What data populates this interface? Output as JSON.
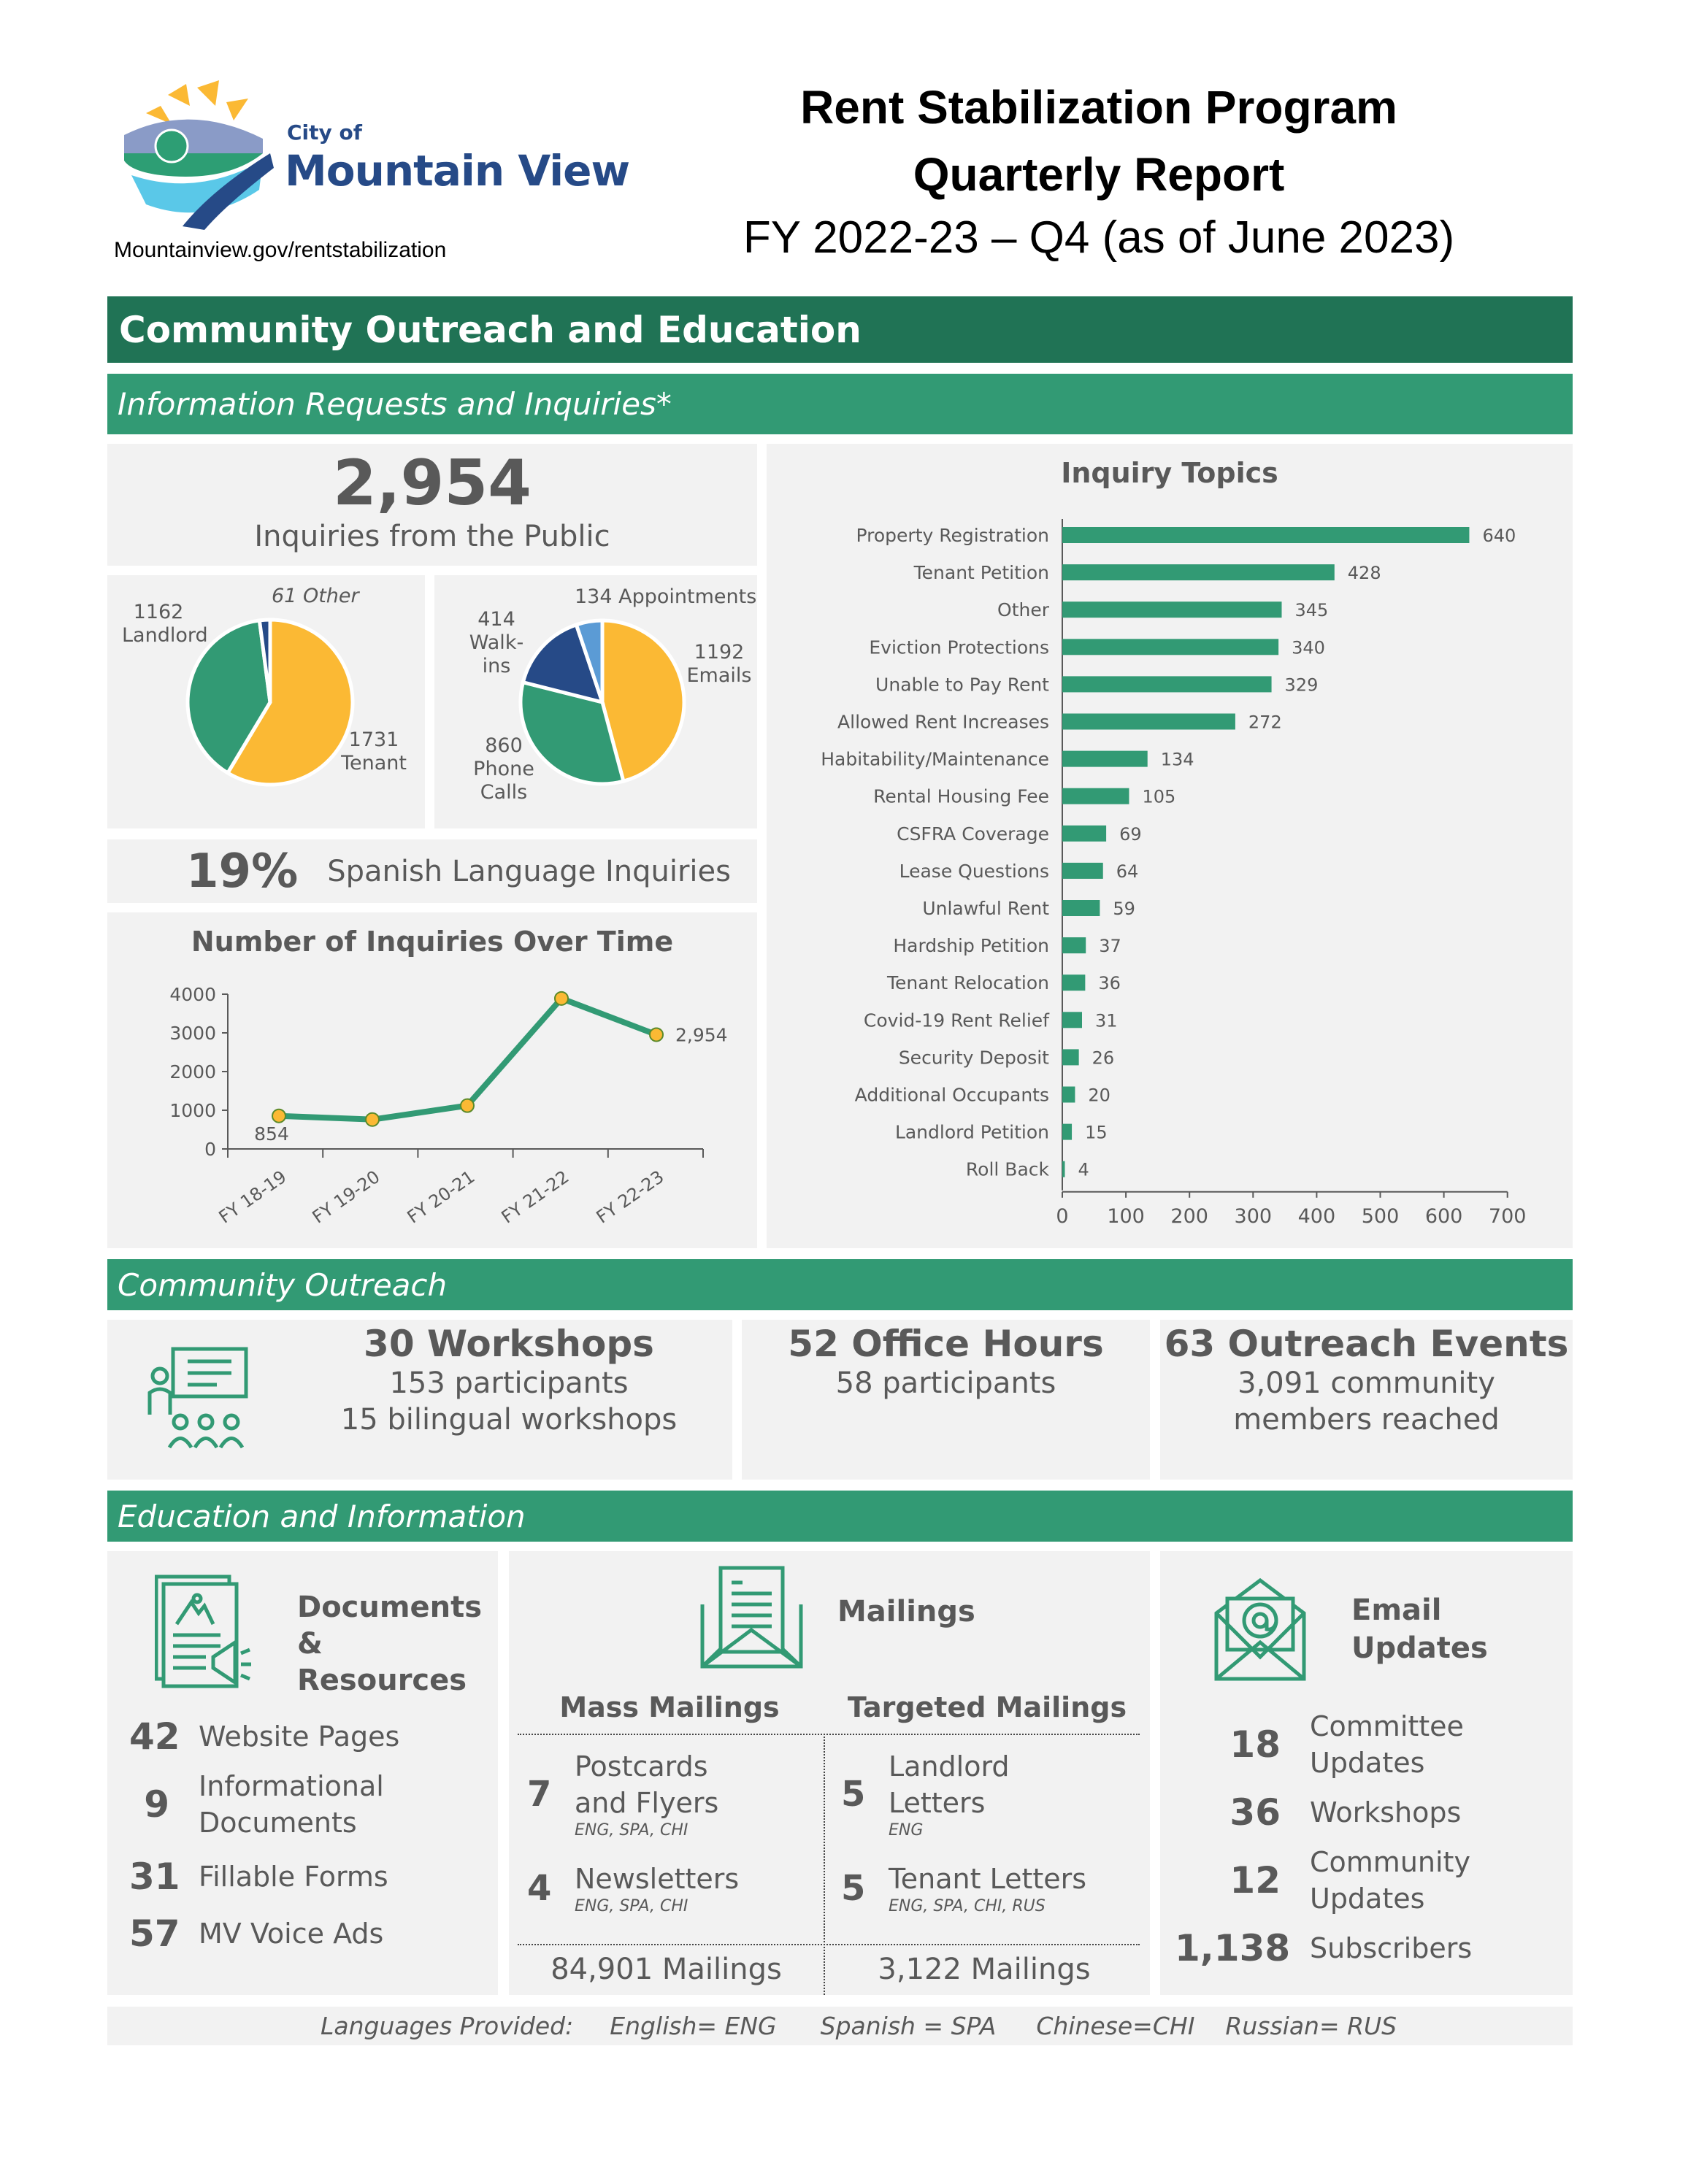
{
  "header": {
    "logo_small": "City of",
    "logo_big": "Mountain View",
    "url": "Mountainview.gov/rentstabilization",
    "title_line1": "Rent Stabilization Program",
    "title_line2": "Quarterly Report",
    "title_line3": "FY 2022-23 – Q4 (as of June 2023)"
  },
  "colors": {
    "dark_green": "#207355",
    "green": "#329a74",
    "yellow": "#fbb934",
    "navy": "#264a87",
    "light_blue": "#5b9bd5",
    "panel": "#f2f2f2"
  },
  "section_title": "Community Outreach and Education",
  "info": {
    "bar": "Information Requests and Inquiries*",
    "total": "2,954",
    "total_label": "Inquiries from the Public",
    "spanish_pct": "19%",
    "spanish_label": "Spanish Language Inquiries"
  },
  "chart_data": [
    {
      "type": "pie",
      "slices": [
        {
          "label": "Tenant",
          "value": 1731,
          "color": "#fbb934",
          "text": "1731",
          "text2": "Tenant"
        },
        {
          "label": "Landlord",
          "value": 1162,
          "color": "#329a74",
          "text": "1162",
          "text2": "Landlord"
        },
        {
          "label": "Other",
          "value": 61,
          "color": "#264a87",
          "text": "61 Other"
        }
      ]
    },
    {
      "type": "pie",
      "slices": [
        {
          "label": "Emails",
          "value": 1192,
          "color": "#fbb934",
          "text": "1192",
          "text2": "Emails"
        },
        {
          "label": "Phone Calls",
          "value": 860,
          "color": "#329a74",
          "text": "860",
          "text2": "Phone",
          "text3": "Calls"
        },
        {
          "label": "Walk-ins",
          "value": 414,
          "color": "#264a87",
          "text": "414",
          "text2": "Walk-ins"
        },
        {
          "label": "Appointments",
          "value": 134,
          "color": "#5b9bd5",
          "text": "134 Appointments"
        }
      ]
    },
    {
      "type": "line",
      "title": "Number of Inquiries Over Time",
      "categories": [
        "FY 18-19",
        "FY 19-20",
        "FY 20-21",
        "FY 21-22",
        "FY 22-23"
      ],
      "values": [
        854,
        760,
        1120,
        3890,
        2954
      ],
      "data_labels": [
        "854",
        "",
        "",
        "",
        "2,954"
      ],
      "yticks": [
        "0",
        "1000",
        "2000",
        "3000",
        "4000"
      ],
      "ylim": [
        0,
        4000
      ]
    },
    {
      "type": "bar",
      "orientation": "horizontal",
      "title": "Inquiry Topics",
      "categories": [
        "Property Registration",
        "Tenant Petition",
        "Other",
        "Eviction Protections",
        "Unable to Pay Rent",
        "Allowed Rent Increases",
        "Habitability/Maintenance",
        "Rental Housing Fee",
        "CSFRA Coverage",
        "Lease Questions",
        "Unlawful Rent",
        "Hardship Petition",
        "Tenant Relocation",
        "Covid-19 Rent Relief",
        "Security Deposit",
        "Additional Occupants",
        "Landlord Petition",
        "Roll Back"
      ],
      "values": [
        640,
        428,
        345,
        340,
        329,
        272,
        134,
        105,
        69,
        64,
        59,
        37,
        36,
        31,
        26,
        20,
        15,
        4
      ],
      "xticks": [
        "0",
        "100",
        "200",
        "300",
        "400",
        "500",
        "600",
        "700"
      ],
      "xlim": [
        0,
        700
      ]
    }
  ],
  "outreach": {
    "bar": "Community Outreach",
    "workshops_title": "30 Workshops",
    "workshops_l1": "153 participants",
    "workshops_l2": "15 bilingual workshops",
    "office_title": "52 Office Hours",
    "office_l1": "58 participants",
    "events_title": "63 Outreach Events",
    "events_l1": "3,091 community",
    "events_l2": "members reached"
  },
  "education": {
    "bar": "Education and Information",
    "docs_title1": "Documents",
    "docs_title2": "& Resources",
    "docs": [
      {
        "n": "42",
        "l1": "Website Pages"
      },
      {
        "n": "9",
        "l1": "Informational",
        "l2": "Documents"
      },
      {
        "n": "31",
        "l1": "Fillable Forms"
      },
      {
        "n": "57",
        "l1": "MV Voice Ads"
      }
    ],
    "mail_title": "Mailings",
    "mass_head": "Mass Mailings",
    "targeted_head": "Targeted Mailings",
    "mass": [
      {
        "n": "7",
        "l1": "Postcards",
        "l2": "and Flyers",
        "lang": "ENG, SPA, CHI"
      },
      {
        "n": "4",
        "l1": "Newsletters",
        "lang": "ENG, SPA, CHI"
      }
    ],
    "targeted": [
      {
        "n": "5",
        "l1": "Landlord",
        "l2": "Letters",
        "lang": "ENG"
      },
      {
        "n": "5",
        "l1": "Tenant Letters",
        "lang": "ENG, SPA, CHI, RUS"
      }
    ],
    "mass_total": "84,901 Mailings",
    "targeted_total": "3,122 Mailings",
    "email_title1": "Email",
    "email_title2": "Updates",
    "email": [
      {
        "n": "18",
        "l1": "Committee",
        "l2": "Updates"
      },
      {
        "n": "36",
        "l1": "Workshops"
      },
      {
        "n": "12",
        "l1": "Community",
        "l2": "Updates"
      },
      {
        "n": "1,138",
        "l1": "Subscribers"
      }
    ]
  },
  "languages": {
    "label": "Languages Provided:",
    "eng": "English= ENG",
    "spa": "Spanish = SPA",
    "chi": "Chinese=CHI",
    "rus": "Russian= RUS"
  }
}
